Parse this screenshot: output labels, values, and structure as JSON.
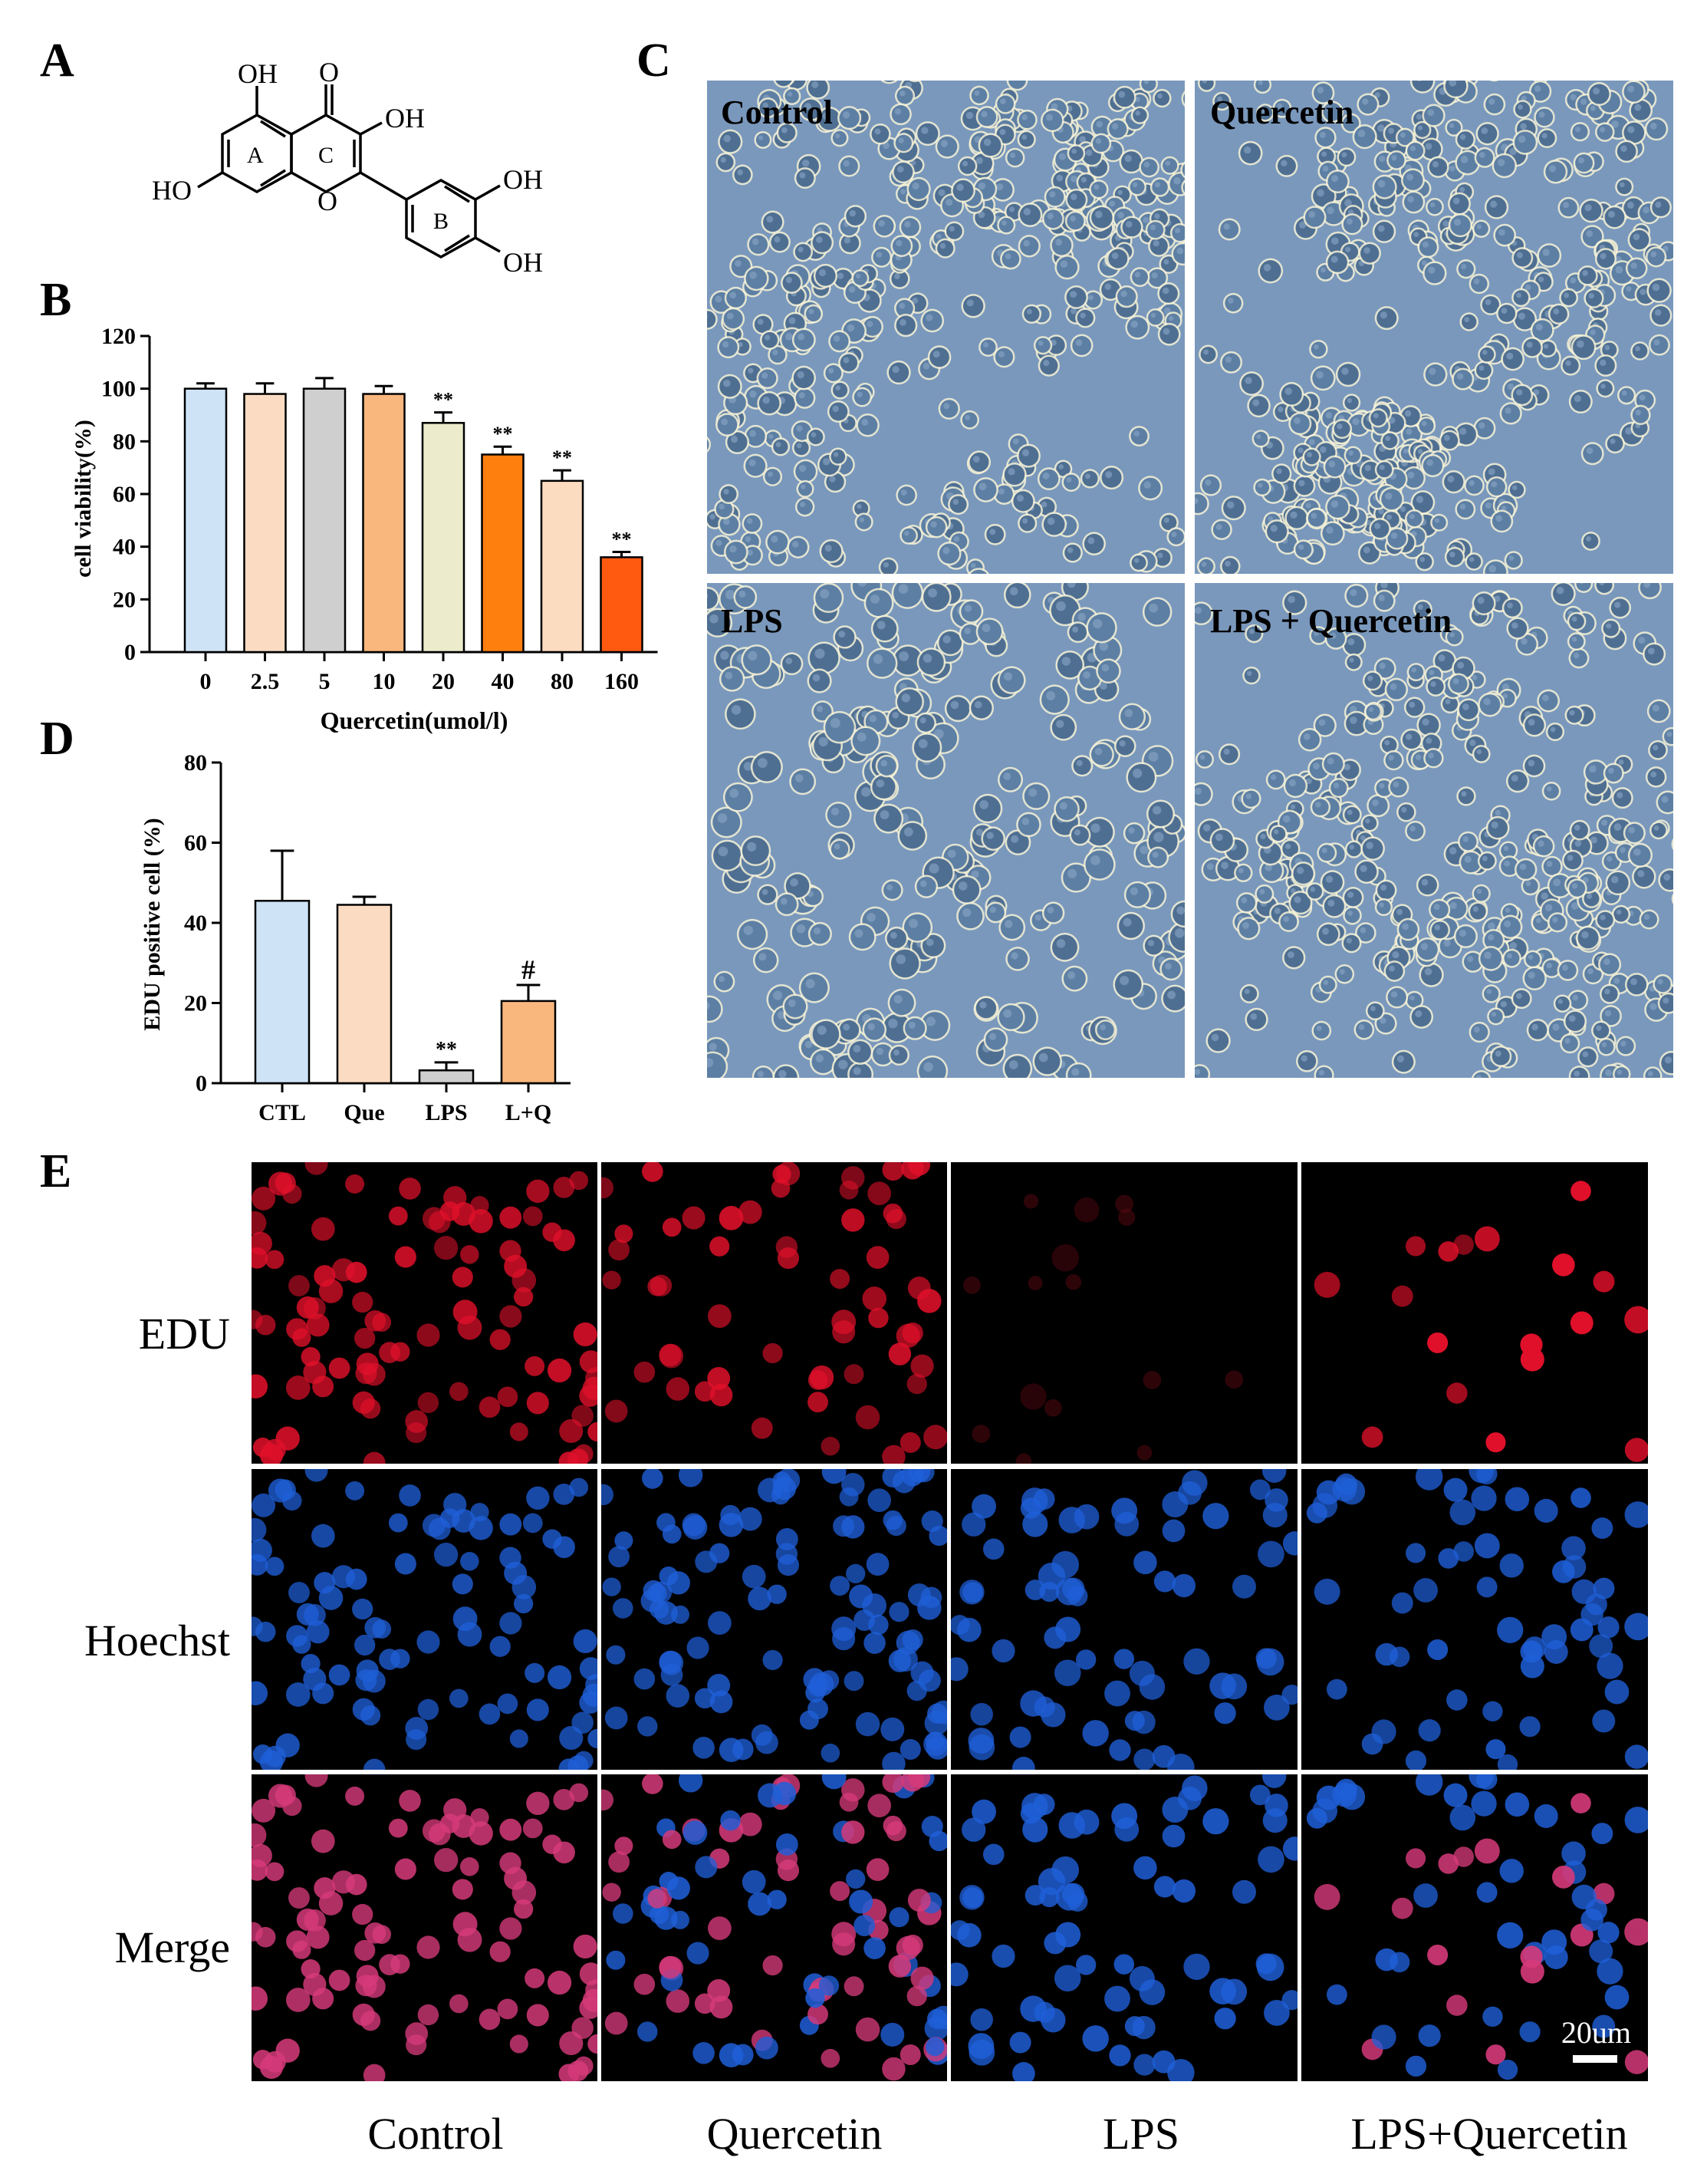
{
  "panels": {
    "A": "A",
    "B": "B",
    "C": "C",
    "D": "D",
    "E": "E"
  },
  "structure": {
    "oh_5": "OH",
    "oxo": "O",
    "oh_3": "OH",
    "ring_a": "A",
    "ring_c": "C",
    "ho_7": "HO",
    "ring_o": "O",
    "ring_b": "B",
    "oh_3p": "OH",
    "oh_4p": "OH"
  },
  "colors": {
    "bar_0": "#cfe3f7",
    "bar_2_5": "#fbdcc2",
    "bar_5": "#cfcfcf",
    "bar_10": "#f9b77e",
    "bar_20": "#ecebcb",
    "bar_40": "#ff7f0e",
    "bar_80": "#fcdcc0",
    "bar_160": "#ff5a10",
    "d_ctl": "#cfe3f7",
    "d_que": "#fbdcc2",
    "d_lps": "#cfcfcf",
    "d_lq": "#f9b77e",
    "phase_bg": "#6f8fb6",
    "edu_red": "#e0102a",
    "hoechst_blue": "#1f5fd8"
  },
  "chart_data": [
    {
      "panel": "B",
      "type": "bar",
      "ylabel": "cell viability(%)",
      "xlabel": "Quercetin(umol/l)",
      "categories": [
        "0",
        "2.5",
        "5",
        "10",
        "20",
        "40",
        "80",
        "160"
      ],
      "values": [
        100,
        98,
        100,
        98,
        87,
        75,
        65,
        36
      ],
      "errors": [
        2,
        4,
        4,
        3,
        4,
        3,
        4,
        2
      ],
      "significance": [
        "",
        "",
        "",
        "",
        "**",
        "**",
        "**",
        "**"
      ],
      "ylim": [
        0,
        120
      ],
      "yticks": [
        "0",
        "20",
        "40",
        "60",
        "80",
        "100",
        "120"
      ]
    },
    {
      "panel": "D",
      "type": "bar",
      "ylabel": "EDU positive cell (%)",
      "categories": [
        "CTL",
        "Que",
        "LPS",
        "L+Q"
      ],
      "values": [
        45.5,
        44.5,
        3.2,
        20.5
      ],
      "errors": [
        12.5,
        2,
        2,
        4
      ],
      "significance": [
        "",
        "",
        "**",
        "#"
      ],
      "ylim": [
        0,
        80
      ],
      "yticks": [
        "0",
        "20",
        "40",
        "60",
        "80"
      ]
    }
  ],
  "panel_c": {
    "labels": [
      "Control",
      "Quercetin",
      "LPS",
      "LPS + Quercetin"
    ]
  },
  "panel_e": {
    "rows": [
      "EDU",
      "Hoechst",
      "Merge"
    ],
    "columns": [
      "Control",
      "Quercetin",
      "LPS",
      "LPS+Quercetin"
    ],
    "scale_bar": "20um"
  }
}
